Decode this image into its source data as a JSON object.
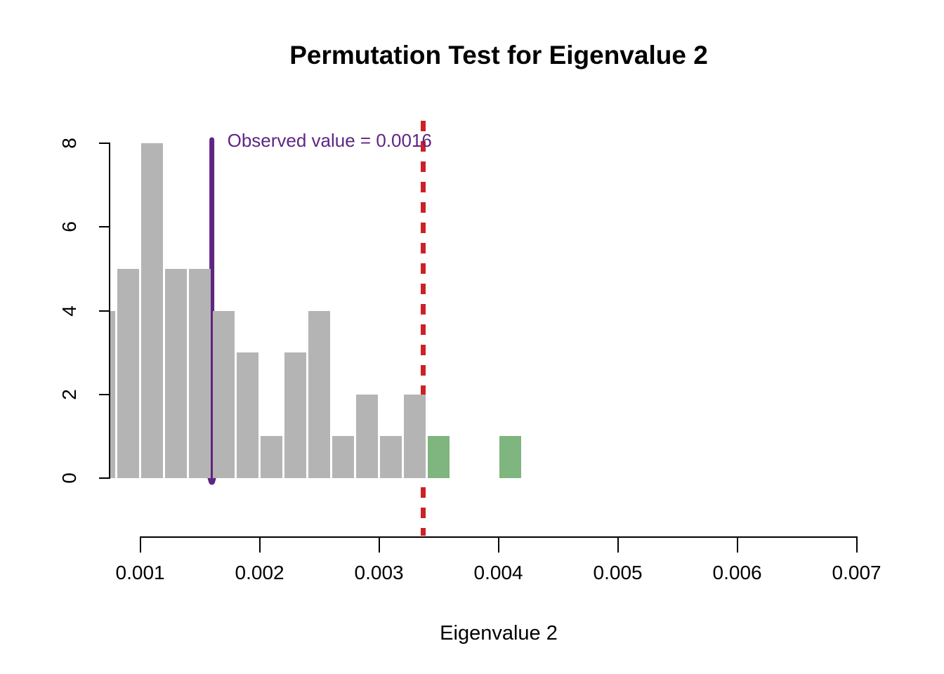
{
  "title": "Permutation Test for Eigenvalue 2",
  "annotation": {
    "label": "Observed value = 0.0016",
    "observed_value": 0.0016
  },
  "axes": {
    "x": {
      "label": "Eigenvalue 2",
      "tick_labels": [
        "0.001",
        "0.002",
        "0.003",
        "0.004",
        "0.005",
        "0.006",
        "0.007"
      ]
    },
    "y": {
      "label": "",
      "tick_labels": [
        "0",
        "2",
        "4",
        "6",
        "8"
      ]
    }
  },
  "colors": {
    "bar_gray": "#b4b4b4",
    "bar_green": "#7fb57e",
    "threshold_red": "#cc2127",
    "observed_purple": "#5f2583",
    "axis_black": "#000000",
    "background": "#ffffff"
  },
  "chart_data": {
    "type": "bar",
    "subtype": "histogram",
    "title": "Permutation Test for Eigenvalue 2",
    "xlabel": "Eigenvalue 2",
    "ylabel": "",
    "xlim": [
      0.00075,
      0.0072
    ],
    "ylim": [
      0,
      8
    ],
    "grid": false,
    "legend": false,
    "bin_width": 0.0002,
    "x_ticks": [
      0.001,
      0.002,
      0.003,
      0.004,
      0.005,
      0.006,
      0.007
    ],
    "y_ticks": [
      0,
      2,
      4,
      6,
      8
    ],
    "bins": [
      {
        "x0": 0.0006,
        "x1": 0.0008,
        "count": 4,
        "significant": false
      },
      {
        "x0": 0.0008,
        "x1": 0.001,
        "count": 5,
        "significant": false
      },
      {
        "x0": 0.001,
        "x1": 0.0012,
        "count": 8,
        "significant": false
      },
      {
        "x0": 0.0012,
        "x1": 0.0014,
        "count": 5,
        "significant": false
      },
      {
        "x0": 0.0014,
        "x1": 0.0016,
        "count": 5,
        "significant": false
      },
      {
        "x0": 0.0016,
        "x1": 0.0018,
        "count": 4,
        "significant": false
      },
      {
        "x0": 0.0018,
        "x1": 0.002,
        "count": 3,
        "significant": false
      },
      {
        "x0": 0.002,
        "x1": 0.0022,
        "count": 1,
        "significant": false
      },
      {
        "x0": 0.0022,
        "x1": 0.0024,
        "count": 3,
        "significant": false
      },
      {
        "x0": 0.0024,
        "x1": 0.0026,
        "count": 4,
        "significant": false
      },
      {
        "x0": 0.0026,
        "x1": 0.0028,
        "count": 1,
        "significant": false
      },
      {
        "x0": 0.0028,
        "x1": 0.003,
        "count": 2,
        "significant": false
      },
      {
        "x0": 0.003,
        "x1": 0.0032,
        "count": 1,
        "significant": false
      },
      {
        "x0": 0.0032,
        "x1": 0.0034,
        "count": 2,
        "significant": false
      },
      {
        "x0": 0.0034,
        "x1": 0.0036,
        "count": 1,
        "significant": true
      },
      {
        "x0": 0.0036,
        "x1": 0.0038,
        "count": 0,
        "significant": false
      },
      {
        "x0": 0.0038,
        "x1": 0.004,
        "count": 0,
        "significant": false
      },
      {
        "x0": 0.004,
        "x1": 0.0042,
        "count": 1,
        "significant": true
      }
    ],
    "observed_value": 0.0016,
    "observed_label": "Observed value = 0.0016",
    "threshold_line_x": 0.00337,
    "threshold_line_style": "dashed"
  }
}
